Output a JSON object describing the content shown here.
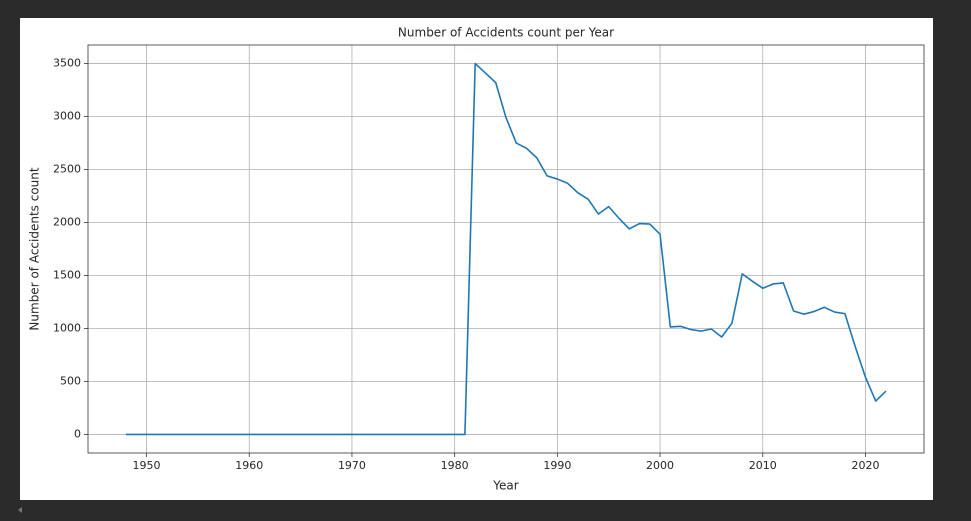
{
  "chart_data": {
    "type": "line",
    "title": "Number of Accidents count per Year",
    "x_label": "Year",
    "y_label": "Number of Accidents count",
    "x": [
      1948,
      1949,
      1950,
      1951,
      1952,
      1953,
      1954,
      1955,
      1956,
      1957,
      1958,
      1959,
      1960,
      1961,
      1962,
      1963,
      1964,
      1965,
      1966,
      1967,
      1968,
      1969,
      1970,
      1971,
      1972,
      1973,
      1974,
      1975,
      1976,
      1977,
      1978,
      1979,
      1980,
      1981,
      1982,
      1983,
      1984,
      1985,
      1986,
      1987,
      1988,
      1989,
      1990,
      1991,
      1992,
      1993,
      1994,
      1995,
      1996,
      1997,
      1998,
      1999,
      2000,
      2001,
      2002,
      2003,
      2004,
      2005,
      2006,
      2007,
      2008,
      2009,
      2010,
      2011,
      2012,
      2013,
      2014,
      2015,
      2016,
      2017,
      2018,
      2019,
      2020,
      2021,
      2022
    ],
    "series": [
      {
        "name": "Number of Accidents count",
        "color": "#1f77b4",
        "values": [
          0,
          0,
          0,
          0,
          0,
          0,
          0,
          0,
          0,
          0,
          0,
          0,
          0,
          0,
          0,
          0,
          0,
          0,
          0,
          0,
          0,
          0,
          0,
          0,
          0,
          0,
          0,
          0,
          0,
          0,
          0,
          0,
          0,
          0,
          3500,
          3410,
          3320,
          2990,
          2750,
          2700,
          2610,
          2440,
          2410,
          2370,
          2280,
          2220,
          2080,
          2150,
          2040,
          1940,
          1990,
          1985,
          1890,
          1015,
          1020,
          990,
          975,
          995,
          920,
          1050,
          1515,
          1445,
          1380,
          1420,
          1430,
          1165,
          1135,
          1160,
          1200,
          1155,
          1140,
          830,
          540,
          315,
          410
        ]
      }
    ],
    "xlim": [
      1944.3,
      2025.7
    ],
    "xticks": [
      1950,
      1960,
      1970,
      1980,
      1990,
      2000,
      2010,
      2020
    ],
    "ylim": [
      -175,
      3675
    ],
    "yticks": [
      0,
      500,
      1000,
      1500,
      2000,
      2500,
      3000,
      3500
    ],
    "grid": true
  }
}
